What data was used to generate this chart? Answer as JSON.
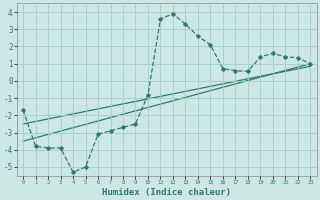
{
  "xlabel": "Humidex (Indice chaleur)",
  "background_color": "#cde8e4",
  "grid_color": "#a0cccc",
  "line_color": "#2d7a6e",
  "xlim": [
    -0.5,
    23.5
  ],
  "ylim": [
    -5.5,
    4.5
  ],
  "xticks": [
    0,
    1,
    2,
    3,
    4,
    5,
    6,
    7,
    8,
    9,
    10,
    11,
    12,
    13,
    14,
    15,
    16,
    17,
    18,
    19,
    20,
    21,
    22,
    23
  ],
  "yticks": [
    -5,
    -4,
    -3,
    -2,
    -1,
    0,
    1,
    2,
    3,
    4
  ],
  "main_x": [
    0,
    1,
    2,
    3,
    4,
    5,
    6,
    7,
    8,
    9,
    10,
    11,
    12,
    13,
    14,
    15,
    16,
    17,
    18,
    19,
    20,
    21,
    22,
    23
  ],
  "main_y": [
    -1.7,
    -3.8,
    -3.9,
    -3.9,
    -5.3,
    -5.0,
    -3.1,
    -2.9,
    -2.7,
    -2.5,
    -0.8,
    3.6,
    3.9,
    3.3,
    2.6,
    2.1,
    0.7,
    0.6,
    0.55,
    1.4,
    1.6,
    1.4,
    1.35,
    1.0
  ],
  "trend_x": [
    0,
    23
  ],
  "trend_y": [
    -3.5,
    1.0
  ],
  "trend2_x": [
    0,
    23
  ],
  "trend2_y": [
    -2.5,
    0.85
  ]
}
